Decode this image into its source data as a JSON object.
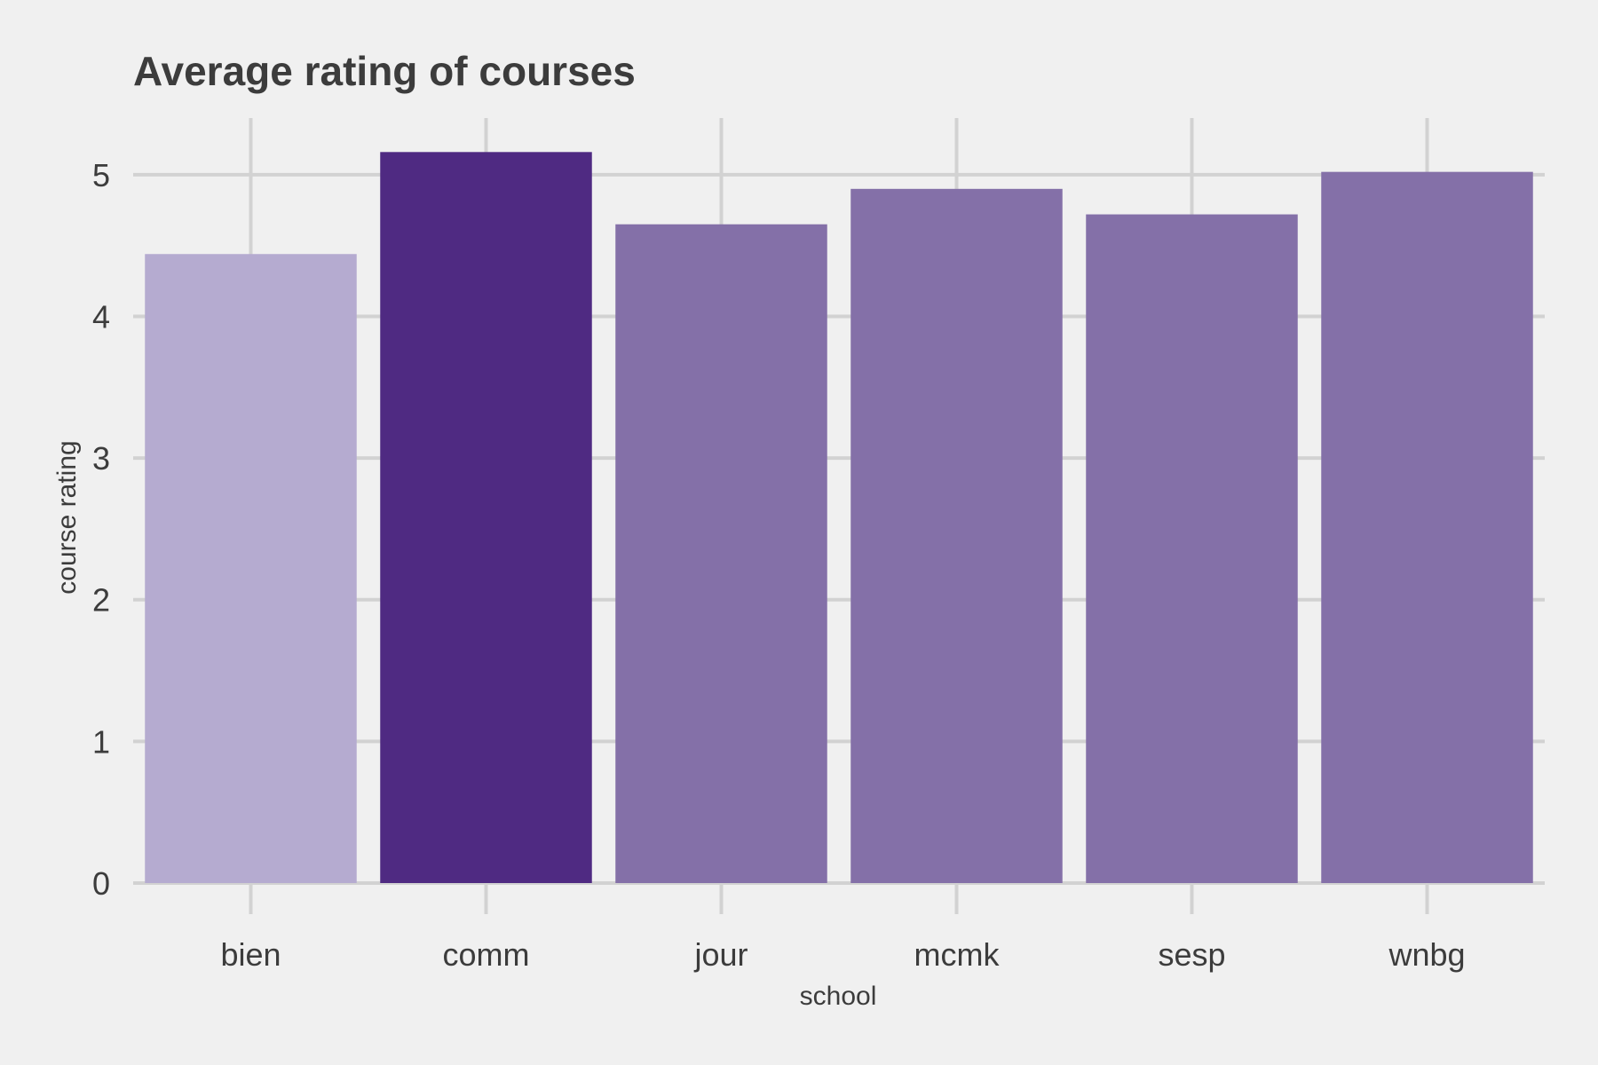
{
  "chart_data": {
    "type": "bar",
    "title": "Average rating of courses",
    "xlabel": "school",
    "ylabel": "course rating",
    "categories": [
      "bien",
      "comm",
      "jour",
      "mcmk",
      "sesp",
      "wnbg"
    ],
    "values": [
      4.44,
      5.16,
      4.65,
      4.9,
      4.72,
      5.02
    ],
    "colors": [
      "#b5abd0",
      "#4f2a82",
      "#8470a8",
      "#8470a8",
      "#8470a8",
      "#8470a8"
    ],
    "ylim": [
      0,
      5.4
    ],
    "yticks": [
      0,
      1,
      2,
      3,
      4,
      5
    ],
    "grid": true,
    "legend": "none"
  }
}
